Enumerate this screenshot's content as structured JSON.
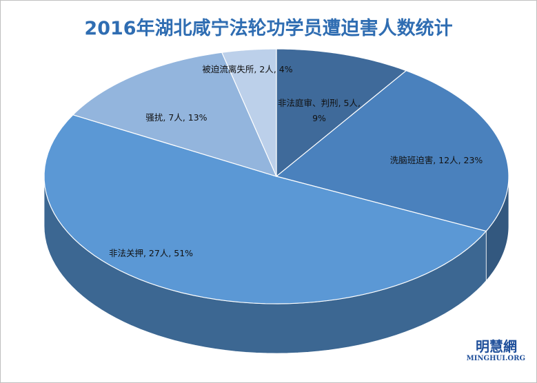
{
  "chart_data": {
    "type": "pie3d",
    "title": "2016年湖北咸宁法轮功学员遭迫害人数统计",
    "categories": [
      "非法庭审、判刑",
      "洗脑班迫害",
      "非法关押",
      "骚扰",
      "被迫流离失所"
    ],
    "values": [
      5,
      12,
      27,
      7,
      2
    ],
    "value_labels": [
      "5人",
      "12人",
      "27人",
      "7人",
      "2人"
    ],
    "percentages": [
      9,
      23,
      51,
      13,
      4
    ],
    "percentage_labels": [
      "9%",
      "23%",
      "51%",
      "13%",
      "4%"
    ],
    "label_separator": ", ",
    "colors": [
      "#3f6a9a",
      "#4a81bd",
      "#5b98d5",
      "#93b5dd",
      "#bcd0ea"
    ],
    "side_colors": [
      "#2c4a6c",
      "#33587f",
      "#3c6792",
      "#647e9c",
      "#7f91a8"
    ]
  },
  "watermark": {
    "title": "明慧網",
    "subtitle": "MINGHUI.ORG"
  }
}
